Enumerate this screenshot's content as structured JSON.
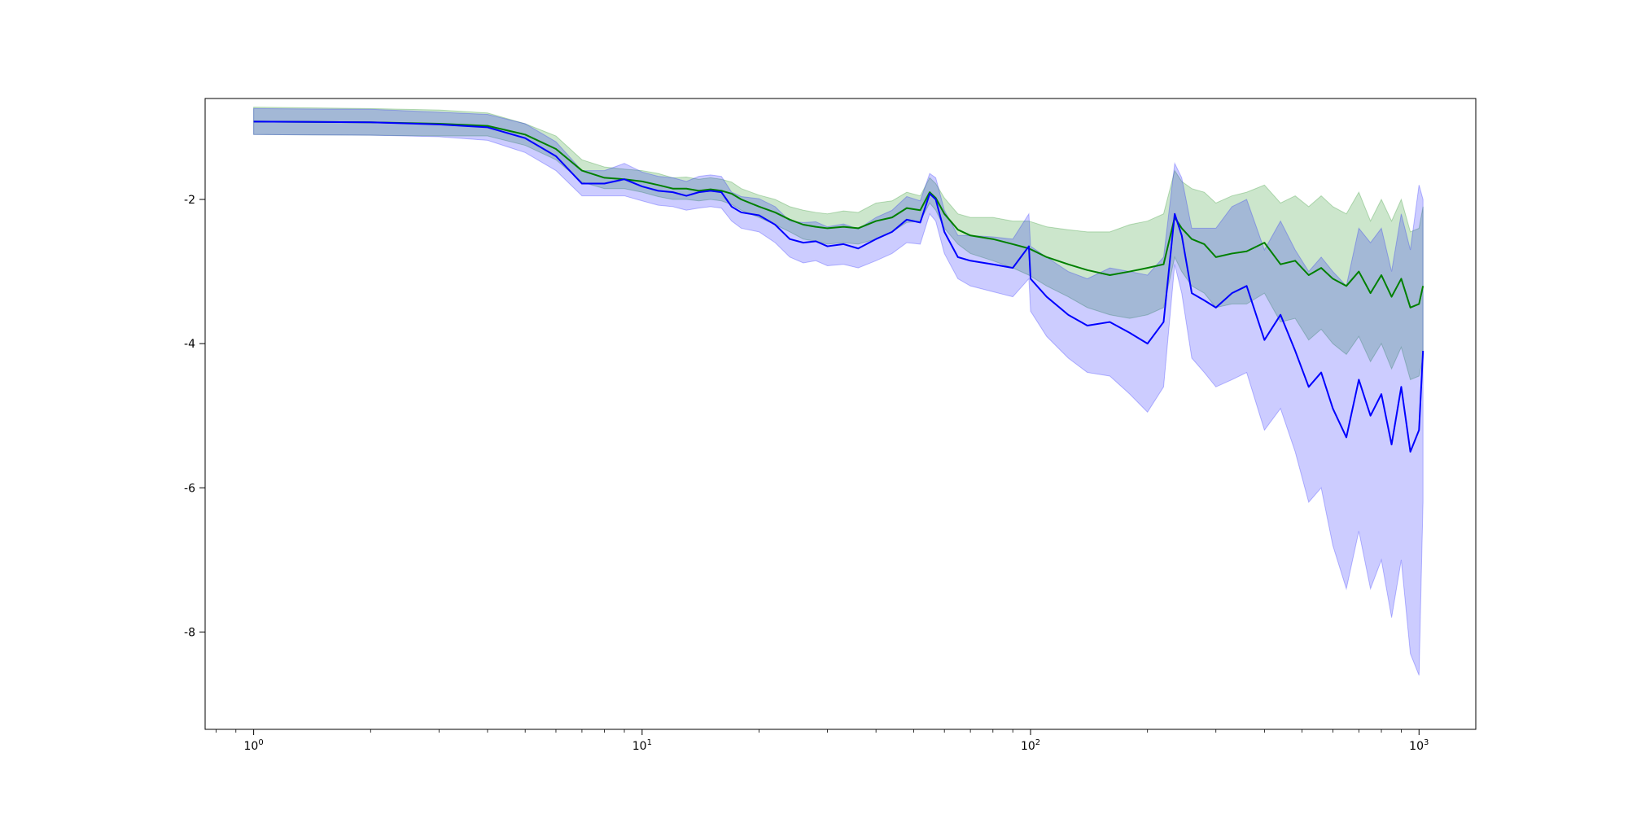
{
  "chart_data": {
    "type": "line",
    "title": "",
    "xlabel": "",
    "ylabel": "",
    "xscale": "log",
    "xlim": [
      0.75,
      1400
    ],
    "ylim": [
      -9.35,
      -0.6
    ],
    "grid": false,
    "legend": "none",
    "x_ticks": [
      {
        "value": 1,
        "base": "10",
        "exp": "0"
      },
      {
        "value": 10,
        "base": "10",
        "exp": "1"
      },
      {
        "value": 100,
        "base": "10",
        "exp": "2"
      },
      {
        "value": 1000,
        "base": "10",
        "exp": "3"
      }
    ],
    "y_ticks": [
      {
        "value": -2,
        "label": "-2"
      },
      {
        "value": -4,
        "label": "-4"
      },
      {
        "value": -6,
        "label": "-6"
      },
      {
        "value": -8,
        "label": "-8"
      }
    ],
    "series": [
      {
        "color": "#008000",
        "band_color": "#008000",
        "x": [
          1,
          2,
          3,
          4,
          5,
          6,
          7,
          8,
          9,
          10,
          11,
          12,
          13,
          14,
          15,
          16,
          17,
          18,
          20,
          22,
          24,
          26,
          28,
          30,
          33,
          36,
          40,
          44,
          48,
          52,
          55,
          57,
          60,
          65,
          70,
          80,
          90,
          99,
          110,
          125,
          140,
          160,
          180,
          200,
          220,
          235,
          245,
          260,
          280,
          300,
          330,
          360,
          400,
          440,
          480,
          520,
          560,
          600,
          650,
          700,
          750,
          800,
          850,
          900,
          950,
          1000,
          1024
        ],
        "mean": [
          -0.92,
          -0.93,
          -0.95,
          -0.98,
          -1.1,
          -1.3,
          -1.6,
          -1.7,
          -1.72,
          -1.75,
          -1.8,
          -1.85,
          -1.85,
          -1.88,
          -1.86,
          -1.88,
          -1.92,
          -2.0,
          -2.1,
          -2.18,
          -2.28,
          -2.35,
          -2.38,
          -2.4,
          -2.38,
          -2.4,
          -2.3,
          -2.25,
          -2.12,
          -2.15,
          -1.9,
          -1.98,
          -2.2,
          -2.42,
          -2.5,
          -2.55,
          -2.62,
          -2.68,
          -2.8,
          -2.9,
          -2.98,
          -3.05,
          -3.0,
          -2.95,
          -2.9,
          -2.25,
          -2.4,
          -2.55,
          -2.62,
          -2.8,
          -2.75,
          -2.72,
          -2.6,
          -2.9,
          -2.85,
          -3.05,
          -2.95,
          -3.1,
          -3.2,
          -3.0,
          -3.3,
          -3.05,
          -3.35,
          -3.1,
          -3.5,
          -3.45,
          -3.2
        ],
        "lower": [
          -1.1,
          -1.11,
          -1.12,
          -1.12,
          -1.25,
          -1.45,
          -1.76,
          -1.85,
          -1.85,
          -1.9,
          -1.96,
          -2.0,
          -2.0,
          -2.02,
          -2.0,
          -2.02,
          -2.07,
          -2.15,
          -2.25,
          -2.35,
          -2.45,
          -2.55,
          -2.58,
          -2.62,
          -2.6,
          -2.62,
          -2.55,
          -2.45,
          -2.32,
          -2.3,
          -2.05,
          -2.15,
          -2.4,
          -2.62,
          -2.75,
          -2.85,
          -2.95,
          -3.05,
          -3.2,
          -3.35,
          -3.5,
          -3.6,
          -3.65,
          -3.6,
          -3.5,
          -2.8,
          -3.0,
          -3.2,
          -3.3,
          -3.5,
          -3.45,
          -3.45,
          -3.3,
          -3.7,
          -3.65,
          -3.95,
          -3.8,
          -4.0,
          -4.15,
          -3.9,
          -4.25,
          -4.0,
          -4.35,
          -4.05,
          -4.5,
          -4.45,
          -4.2
        ],
        "upper": [
          -0.72,
          -0.74,
          -0.76,
          -0.8,
          -0.95,
          -1.12,
          -1.45,
          -1.55,
          -1.58,
          -1.6,
          -1.64,
          -1.7,
          -1.69,
          -1.72,
          -1.7,
          -1.72,
          -1.76,
          -1.85,
          -1.94,
          -2.0,
          -2.1,
          -2.15,
          -2.18,
          -2.2,
          -2.16,
          -2.18,
          -2.05,
          -2.02,
          -1.9,
          -1.95,
          -1.7,
          -1.78,
          -1.98,
          -2.2,
          -2.25,
          -2.25,
          -2.3,
          -2.3,
          -2.38,
          -2.42,
          -2.45,
          -2.45,
          -2.35,
          -2.3,
          -2.2,
          -1.6,
          -1.75,
          -1.85,
          -1.9,
          -2.05,
          -1.95,
          -1.9,
          -1.8,
          -2.05,
          -1.95,
          -2.1,
          -1.95,
          -2.1,
          -2.2,
          -1.9,
          -2.3,
          -2.0,
          -2.3,
          -2.0,
          -2.45,
          -2.4,
          -2.1
        ]
      },
      {
        "color": "#0000ff",
        "band_color": "#0000ff",
        "x": [
          1,
          2,
          3,
          4,
          5,
          6,
          7,
          8,
          9,
          10,
          11,
          12,
          13,
          14,
          15,
          16,
          17,
          18,
          20,
          22,
          24,
          26,
          28,
          30,
          33,
          36,
          40,
          44,
          48,
          52,
          55,
          57,
          60,
          65,
          70,
          80,
          90,
          99,
          100,
          110,
          125,
          140,
          160,
          180,
          200,
          220,
          235,
          245,
          260,
          280,
          300,
          330,
          360,
          400,
          440,
          480,
          520,
          560,
          600,
          650,
          700,
          750,
          800,
          850,
          900,
          950,
          1000,
          1024
        ],
        "mean": [
          -0.92,
          -0.93,
          -0.96,
          -1.0,
          -1.15,
          -1.4,
          -1.78,
          -1.78,
          -1.72,
          -1.82,
          -1.88,
          -1.9,
          -1.95,
          -1.9,
          -1.88,
          -1.9,
          -2.1,
          -2.18,
          -2.22,
          -2.35,
          -2.55,
          -2.6,
          -2.58,
          -2.65,
          -2.62,
          -2.68,
          -2.55,
          -2.45,
          -2.28,
          -2.32,
          -1.92,
          -2.0,
          -2.45,
          -2.8,
          -2.85,
          -2.9,
          -2.95,
          -2.65,
          -3.1,
          -3.35,
          -3.6,
          -3.75,
          -3.7,
          -3.85,
          -4.0,
          -3.7,
          -2.2,
          -2.5,
          -3.3,
          -3.4,
          -3.5,
          -3.3,
          -3.2,
          -3.95,
          -3.6,
          -4.1,
          -4.6,
          -4.4,
          -4.9,
          -5.3,
          -4.5,
          -5.0,
          -4.7,
          -5.4,
          -4.6,
          -5.5,
          -5.2,
          -4.1
        ],
        "lower": [
          -1.1,
          -1.11,
          -1.13,
          -1.18,
          -1.35,
          -1.6,
          -1.95,
          -1.95,
          -1.95,
          -2.02,
          -2.08,
          -2.1,
          -2.15,
          -2.12,
          -2.1,
          -2.12,
          -2.3,
          -2.4,
          -2.45,
          -2.6,
          -2.8,
          -2.88,
          -2.85,
          -2.92,
          -2.9,
          -2.95,
          -2.85,
          -2.75,
          -2.6,
          -2.62,
          -2.2,
          -2.3,
          -2.75,
          -3.1,
          -3.2,
          -3.28,
          -3.35,
          -3.1,
          -3.55,
          -3.9,
          -4.2,
          -4.4,
          -4.45,
          -4.7,
          -4.95,
          -4.6,
          -2.9,
          -3.3,
          -4.2,
          -4.4,
          -4.6,
          -4.5,
          -4.4,
          -5.2,
          -4.9,
          -5.5,
          -6.2,
          -6.0,
          -6.8,
          -7.4,
          -6.6,
          -7.4,
          -7.0,
          -7.8,
          -7.0,
          -8.3,
          -8.6,
          -6.2
        ],
        "upper": [
          -0.74,
          -0.75,
          -0.79,
          -0.82,
          -0.95,
          -1.2,
          -1.6,
          -1.6,
          -1.5,
          -1.62,
          -1.68,
          -1.7,
          -1.75,
          -1.68,
          -1.66,
          -1.68,
          -1.9,
          -1.96,
          -1.99,
          -2.1,
          -2.3,
          -2.32,
          -2.31,
          -2.38,
          -2.34,
          -2.41,
          -2.25,
          -2.15,
          -1.96,
          -2.02,
          -1.64,
          -1.7,
          -2.15,
          -2.5,
          -2.5,
          -2.52,
          -2.55,
          -2.2,
          -2.65,
          -2.8,
          -3.0,
          -3.1,
          -2.95,
          -3.0,
          -3.05,
          -2.8,
          -1.5,
          -1.7,
          -2.4,
          -2.4,
          -2.4,
          -2.1,
          -2.0,
          -2.7,
          -2.3,
          -2.7,
          -3.0,
          -2.8,
          -3.0,
          -3.2,
          -2.4,
          -2.6,
          -2.4,
          -3.0,
          -2.2,
          -2.7,
          -1.8,
          -2.0
        ]
      }
    ]
  }
}
